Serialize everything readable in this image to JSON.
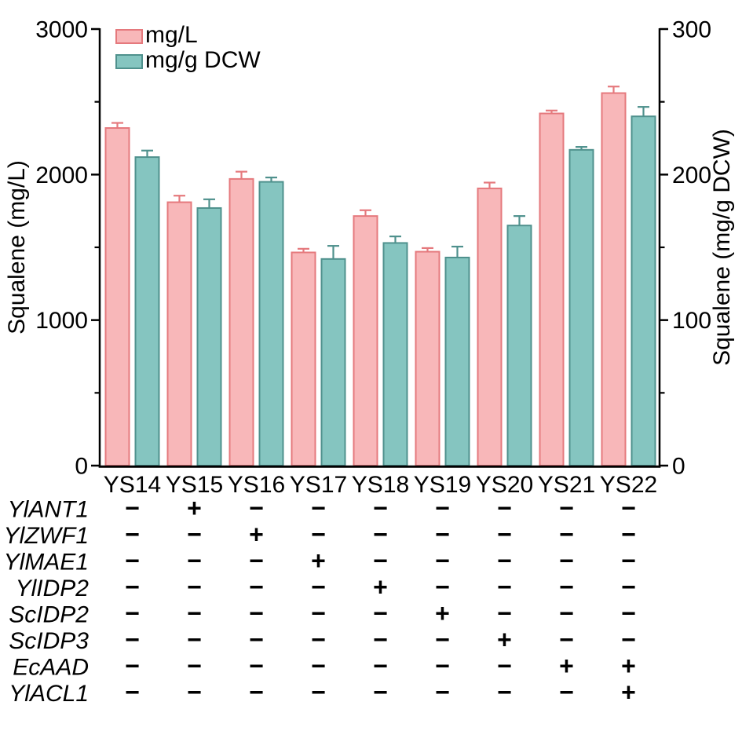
{
  "chart_data": {
    "type": "bar",
    "title": "",
    "categories": [
      "YS14",
      "YS15",
      "YS16",
      "YS17",
      "YS18",
      "YS19",
      "YS20",
      "YS21",
      "YS22"
    ],
    "series": [
      {
        "name": "mg/L",
        "axis": "left",
        "fill": "#F8B7B9",
        "stroke": "#E5797D",
        "values": [
          2320,
          1810,
          1970,
          1465,
          1715,
          1470,
          1905,
          2420,
          2560
        ],
        "errors": [
          35,
          45,
          50,
          25,
          40,
          25,
          40,
          20,
          45
        ]
      },
      {
        "name": "mg/g DCW",
        "axis": "right",
        "fill": "#85C5C0",
        "stroke": "#4F918D",
        "values": [
          212,
          177,
          195,
          142,
          153,
          143,
          165,
          217,
          240
        ],
        "errors": [
          4.5,
          6,
          3,
          9,
          4.5,
          7.5,
          6.5,
          2,
          6.5
        ]
      }
    ],
    "left_axis": {
      "label": "Squalene (mg/L)",
      "min": 0,
      "max": 3000,
      "major_ticks": [
        0,
        1000,
        2000,
        3000
      ],
      "minor_ticks": [
        500,
        1500,
        2500
      ]
    },
    "right_axis": {
      "label": "Squalene (mg/g DCW)",
      "min": 0,
      "max": 300,
      "major_ticks": [
        0,
        100,
        200,
        300
      ],
      "minor_ticks": [
        50,
        150,
        250
      ]
    },
    "legend": {
      "position": "top-left-inside",
      "entries": [
        "mg/L",
        "mg/g DCW"
      ]
    },
    "grid": false
  },
  "gene_matrix": {
    "rows": [
      {
        "gene": "YlANT1",
        "values": [
          "-",
          "+",
          "-",
          "-",
          "-",
          "-",
          "-",
          "-",
          "-"
        ]
      },
      {
        "gene": "YlZWF1",
        "values": [
          "-",
          "-",
          "+",
          "-",
          "-",
          "-",
          "-",
          "-",
          "-"
        ]
      },
      {
        "gene": "YlMAE1",
        "values": [
          "-",
          "-",
          "-",
          "+",
          "-",
          "-",
          "-",
          "-",
          "-"
        ]
      },
      {
        "gene": "YlIDP2",
        "values": [
          "-",
          "-",
          "-",
          "-",
          "+",
          "-",
          "-",
          "-",
          "-"
        ]
      },
      {
        "gene": "ScIDP2",
        "values": [
          "-",
          "-",
          "-",
          "-",
          "-",
          "+",
          "-",
          "-",
          "-"
        ]
      },
      {
        "gene": "ScIDP3",
        "values": [
          "-",
          "-",
          "-",
          "-",
          "-",
          "-",
          "+",
          "-",
          "-"
        ]
      },
      {
        "gene": "EcAAD",
        "values": [
          "-",
          "-",
          "-",
          "-",
          "-",
          "-",
          "-",
          "+",
          "+"
        ]
      },
      {
        "gene": "YlACL1",
        "values": [
          "-",
          "-",
          "-",
          "-",
          "-",
          "-",
          "-",
          "-",
          "+"
        ]
      }
    ]
  },
  "colors": {
    "background": "#FFFFFF",
    "axis": "#000000",
    "text": "#000000"
  }
}
